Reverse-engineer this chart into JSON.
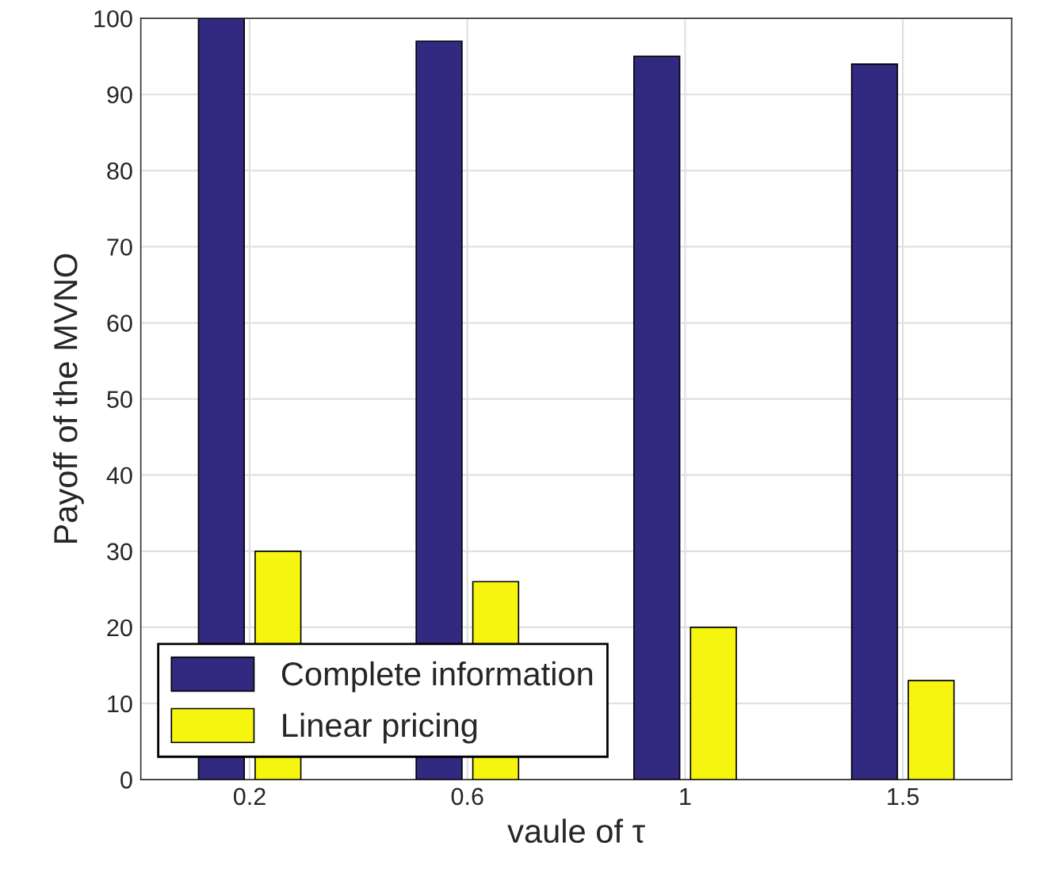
{
  "chart_data": {
    "type": "bar",
    "xlabel": "vaule of τ",
    "ylabel": "Payoff of the MVNO",
    "categories": [
      "0.2",
      "0.6",
      "1",
      "1.5"
    ],
    "series": [
      {
        "name": "Complete information",
        "color": "#312a80",
        "values": [
          100,
          97,
          95,
          94
        ]
      },
      {
        "name": "Linear pricing",
        "color": "#f5f50f",
        "values": [
          30,
          26,
          20,
          13
        ]
      }
    ],
    "ylim": [
      0,
      100
    ],
    "yticks": [
      0,
      10,
      20,
      30,
      40,
      50,
      60,
      70,
      80,
      90,
      100
    ],
    "grid": true,
    "legend": "bottom left"
  }
}
